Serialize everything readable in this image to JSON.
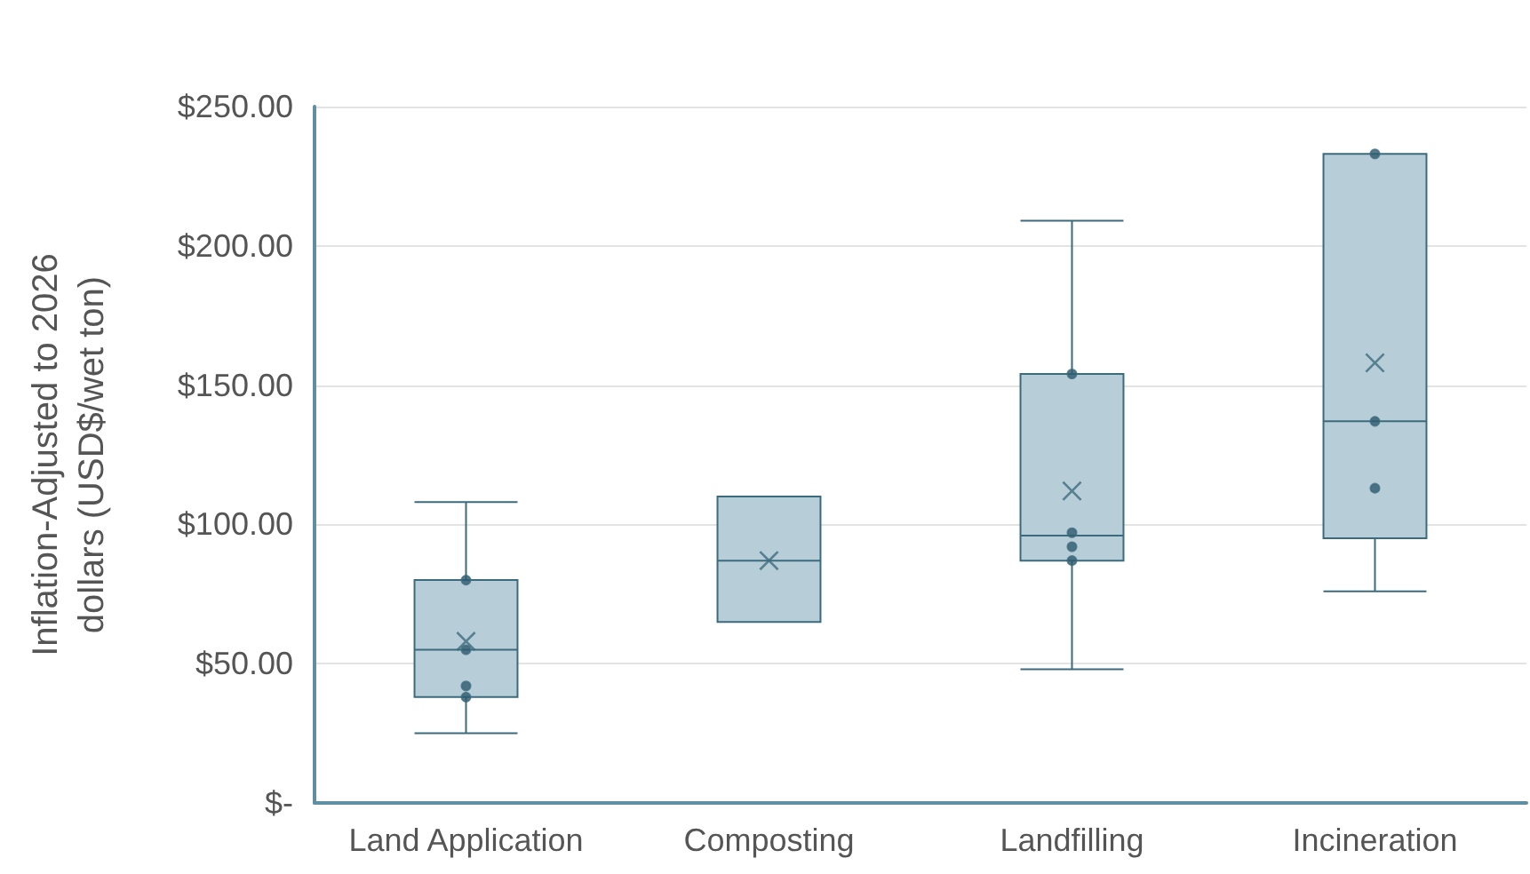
{
  "chart_data": {
    "type": "box",
    "ylabel": "Inflation-Adjusted to 2026\ndollars (USD$/wet ton)",
    "categories": [
      "Land Application",
      "Composting",
      "Landfilling",
      "Incineration"
    ],
    "ylim": [
      0,
      250
    ],
    "yticks": [
      {
        "value": 0,
        "label": "$-"
      },
      {
        "value": 50,
        "label": "$50.00"
      },
      {
        "value": 100,
        "label": "$100.00"
      },
      {
        "value": 150,
        "label": "$150.00"
      },
      {
        "value": 200,
        "label": "$200.00"
      },
      {
        "value": 250,
        "label": "$250.00"
      }
    ],
    "grid": "y",
    "series": [
      {
        "color": "#b7cdd8",
        "boxes": [
          {
            "low": 25,
            "q1": 38,
            "median": 55,
            "q3": 80,
            "high": 108,
            "mean": 58
          },
          {
            "low": 65,
            "q1": 65,
            "median": 87,
            "q3": 110,
            "high": 110,
            "mean": 87
          },
          {
            "low": 48,
            "q1": 87,
            "median": 96,
            "q3": 154,
            "high": 209,
            "mean": 112
          },
          {
            "low": 76,
            "q1": 95,
            "median": 137,
            "q3": 233,
            "high": 233,
            "mean": 158
          }
        ]
      },
      {
        "type": "scatter",
        "color": "#2e5a6e",
        "marker": "circle",
        "x": [
          "Land Application",
          "Land Application",
          "Land Application",
          "Land Application",
          "Land Application",
          "Landfilling",
          "Landfilling",
          "Landfilling",
          "Landfilling",
          "Incineration",
          "Incineration",
          "Incineration"
        ],
        "values": [
          80,
          null,
          55,
          42,
          38,
          154,
          97,
          92,
          87,
          233,
          137,
          113
        ]
      }
    ]
  }
}
